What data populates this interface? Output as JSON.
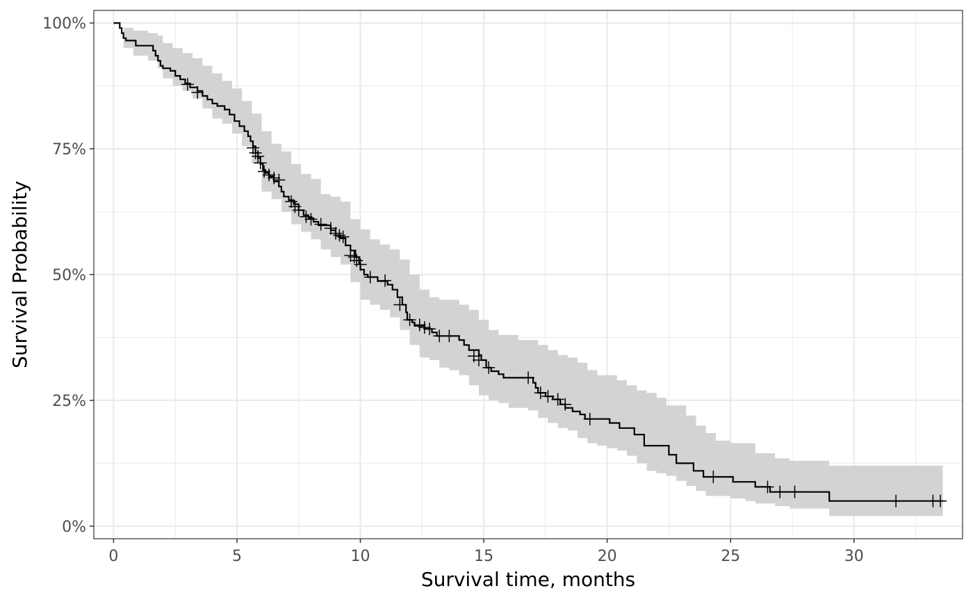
{
  "chart_data": {
    "type": "line",
    "title": "",
    "xlabel": "Survival time, months",
    "ylabel": "Survival Probability",
    "xlim": [
      -0.8,
      34.4
    ],
    "ylim": [
      -0.025,
      1.025
    ],
    "x_ticks": [
      0,
      5,
      10,
      15,
      20,
      25,
      30
    ],
    "x_tick_labels": [
      "0",
      "5",
      "10",
      "15",
      "20",
      "25",
      "30"
    ],
    "y_ticks": [
      0,
      0.25,
      0.5,
      0.75,
      1.0
    ],
    "y_tick_labels": [
      "0%",
      "25%",
      "50%",
      "75%",
      "100%"
    ],
    "grid": true,
    "legend": "none",
    "colors": {
      "curve": "#000000",
      "ci_band": "#d3d3d3",
      "grid": "#ebebeb",
      "panel_border": "#333333"
    },
    "series": [
      {
        "step": true,
        "points": [
          [
            0,
            1.0
          ],
          [
            0.25,
            0.99
          ],
          [
            0.33,
            0.98
          ],
          [
            0.4,
            0.97
          ],
          [
            0.5,
            0.965
          ],
          [
            0.9,
            0.955
          ],
          [
            1.6,
            0.945
          ],
          [
            1.7,
            0.935
          ],
          [
            1.8,
            0.925
          ],
          [
            1.9,
            0.915
          ],
          [
            2.0,
            0.91
          ],
          [
            2.3,
            0.905
          ],
          [
            2.5,
            0.895
          ],
          [
            2.7,
            0.888
          ],
          [
            2.9,
            0.88
          ],
          [
            3.1,
            0.872
          ],
          [
            3.4,
            0.865
          ],
          [
            3.6,
            0.855
          ],
          [
            3.8,
            0.848
          ],
          [
            4.0,
            0.84
          ],
          [
            4.2,
            0.835
          ],
          [
            4.5,
            0.828
          ],
          [
            4.7,
            0.818
          ],
          [
            4.9,
            0.805
          ],
          [
            5.1,
            0.795
          ],
          [
            5.3,
            0.785
          ],
          [
            5.45,
            0.775
          ],
          [
            5.55,
            0.765
          ],
          [
            5.65,
            0.755
          ],
          [
            5.75,
            0.742
          ],
          [
            5.85,
            0.732
          ],
          [
            5.95,
            0.72
          ],
          [
            6.05,
            0.708
          ],
          [
            6.15,
            0.702
          ],
          [
            6.3,
            0.695
          ],
          [
            6.5,
            0.685
          ],
          [
            6.7,
            0.675
          ],
          [
            6.8,
            0.665
          ],
          [
            6.9,
            0.655
          ],
          [
            7.1,
            0.648
          ],
          [
            7.3,
            0.64
          ],
          [
            7.5,
            0.628
          ],
          [
            7.7,
            0.618
          ],
          [
            7.9,
            0.612
          ],
          [
            8.1,
            0.605
          ],
          [
            8.3,
            0.598
          ],
          [
            8.6,
            0.598
          ],
          [
            8.8,
            0.588
          ],
          [
            9.0,
            0.578
          ],
          [
            9.2,
            0.572
          ],
          [
            9.4,
            0.558
          ],
          [
            9.6,
            0.548
          ],
          [
            9.8,
            0.535
          ],
          [
            9.95,
            0.522
          ],
          [
            10.0,
            0.51
          ],
          [
            10.15,
            0.5
          ],
          [
            10.3,
            0.495
          ],
          [
            10.7,
            0.487
          ],
          [
            11.1,
            0.48
          ],
          [
            11.3,
            0.47
          ],
          [
            11.5,
            0.455
          ],
          [
            11.7,
            0.44
          ],
          [
            11.85,
            0.425
          ],
          [
            11.9,
            0.41
          ],
          [
            12.1,
            0.405
          ],
          [
            12.2,
            0.398
          ],
          [
            12.6,
            0.392
          ],
          [
            12.9,
            0.385
          ],
          [
            13.1,
            0.378
          ],
          [
            14.0,
            0.37
          ],
          [
            14.2,
            0.36
          ],
          [
            14.4,
            0.35
          ],
          [
            14.8,
            0.34
          ],
          [
            14.9,
            0.33
          ],
          [
            15.1,
            0.315
          ],
          [
            15.3,
            0.308
          ],
          [
            15.6,
            0.302
          ],
          [
            15.8,
            0.295
          ],
          [
            17.0,
            0.285
          ],
          [
            17.1,
            0.275
          ],
          [
            17.2,
            0.265
          ],
          [
            17.5,
            0.258
          ],
          [
            17.8,
            0.252
          ],
          [
            18.1,
            0.242
          ],
          [
            18.3,
            0.235
          ],
          [
            18.6,
            0.228
          ],
          [
            18.9,
            0.222
          ],
          [
            19.1,
            0.213
          ],
          [
            20.1,
            0.205
          ],
          [
            20.5,
            0.195
          ],
          [
            21.1,
            0.182
          ],
          [
            21.5,
            0.16
          ],
          [
            22.5,
            0.142
          ],
          [
            22.8,
            0.125
          ],
          [
            23.5,
            0.11
          ],
          [
            23.9,
            0.098
          ],
          [
            25.1,
            0.088
          ],
          [
            26.0,
            0.078
          ],
          [
            26.6,
            0.068
          ],
          [
            27.3,
            0.068
          ],
          [
            29.0,
            0.05
          ],
          [
            33.6,
            0.05
          ]
        ],
        "ci_band": [
          [
            0,
            1.0,
            1.0
          ],
          [
            0.4,
            0.95,
            0.99
          ],
          [
            0.8,
            0.935,
            0.985
          ],
          [
            1.4,
            0.925,
            0.98
          ],
          [
            1.8,
            0.91,
            0.975
          ],
          [
            2.0,
            0.89,
            0.96
          ],
          [
            2.4,
            0.875,
            0.95
          ],
          [
            2.8,
            0.865,
            0.94
          ],
          [
            3.2,
            0.85,
            0.93
          ],
          [
            3.6,
            0.83,
            0.915
          ],
          [
            4.0,
            0.81,
            0.9
          ],
          [
            4.4,
            0.8,
            0.885
          ],
          [
            4.8,
            0.78,
            0.87
          ],
          [
            5.2,
            0.755,
            0.845
          ],
          [
            5.6,
            0.72,
            0.82
          ],
          [
            6.0,
            0.665,
            0.785
          ],
          [
            6.4,
            0.65,
            0.76
          ],
          [
            6.8,
            0.625,
            0.745
          ],
          [
            7.2,
            0.6,
            0.72
          ],
          [
            7.6,
            0.585,
            0.7
          ],
          [
            8.0,
            0.57,
            0.69
          ],
          [
            8.4,
            0.55,
            0.66
          ],
          [
            8.8,
            0.535,
            0.655
          ],
          [
            9.2,
            0.52,
            0.645
          ],
          [
            9.6,
            0.485,
            0.61
          ],
          [
            10.0,
            0.45,
            0.59
          ],
          [
            10.4,
            0.44,
            0.57
          ],
          [
            10.8,
            0.43,
            0.56
          ],
          [
            11.2,
            0.415,
            0.55
          ],
          [
            11.6,
            0.39,
            0.53
          ],
          [
            12.0,
            0.36,
            0.5
          ],
          [
            12.4,
            0.335,
            0.47
          ],
          [
            12.8,
            0.33,
            0.455
          ],
          [
            13.2,
            0.315,
            0.45
          ],
          [
            13.6,
            0.31,
            0.45
          ],
          [
            14.0,
            0.3,
            0.44
          ],
          [
            14.4,
            0.28,
            0.43
          ],
          [
            14.8,
            0.26,
            0.41
          ],
          [
            15.2,
            0.25,
            0.39
          ],
          [
            15.6,
            0.245,
            0.38
          ],
          [
            16.0,
            0.235,
            0.38
          ],
          [
            16.4,
            0.235,
            0.37
          ],
          [
            16.8,
            0.23,
            0.37
          ],
          [
            17.2,
            0.215,
            0.36
          ],
          [
            17.6,
            0.205,
            0.35
          ],
          [
            18.0,
            0.195,
            0.34
          ],
          [
            18.4,
            0.19,
            0.335
          ],
          [
            18.8,
            0.175,
            0.325
          ],
          [
            19.2,
            0.165,
            0.31
          ],
          [
            19.6,
            0.16,
            0.3
          ],
          [
            20.0,
            0.155,
            0.3
          ],
          [
            20.4,
            0.15,
            0.29
          ],
          [
            20.8,
            0.14,
            0.28
          ],
          [
            21.2,
            0.125,
            0.27
          ],
          [
            21.6,
            0.11,
            0.265
          ],
          [
            22.0,
            0.105,
            0.255
          ],
          [
            22.4,
            0.1,
            0.24
          ],
          [
            22.8,
            0.09,
            0.24
          ],
          [
            23.2,
            0.08,
            0.22
          ],
          [
            23.6,
            0.07,
            0.2
          ],
          [
            24.0,
            0.06,
            0.185
          ],
          [
            24.4,
            0.06,
            0.17
          ],
          [
            25.0,
            0.055,
            0.165
          ],
          [
            25.6,
            0.05,
            0.165
          ],
          [
            26.0,
            0.045,
            0.145
          ],
          [
            26.8,
            0.04,
            0.135
          ],
          [
            27.4,
            0.035,
            0.13
          ],
          [
            28.2,
            0.035,
            0.13
          ],
          [
            29.0,
            0.02,
            0.12
          ],
          [
            33.6,
            0.02,
            0.12
          ]
        ],
        "censor_marks": [
          [
            3.0,
            0.878
          ],
          [
            3.4,
            0.862
          ],
          [
            5.65,
            0.752
          ],
          [
            5.75,
            0.742
          ],
          [
            5.85,
            0.735
          ],
          [
            5.95,
            0.722
          ],
          [
            6.1,
            0.705
          ],
          [
            6.3,
            0.698
          ],
          [
            6.5,
            0.692
          ],
          [
            6.7,
            0.688
          ],
          [
            7.2,
            0.645
          ],
          [
            7.35,
            0.635
          ],
          [
            7.5,
            0.628
          ],
          [
            7.8,
            0.615
          ],
          [
            8.0,
            0.61
          ],
          [
            8.4,
            0.6
          ],
          [
            8.8,
            0.592
          ],
          [
            9.0,
            0.582
          ],
          [
            9.15,
            0.578
          ],
          [
            9.3,
            0.575
          ],
          [
            9.6,
            0.538
          ],
          [
            9.75,
            0.535
          ],
          [
            9.85,
            0.528
          ],
          [
            10.0,
            0.52
          ],
          [
            10.4,
            0.495
          ],
          [
            11.0,
            0.488
          ],
          [
            11.6,
            0.44
          ],
          [
            12.0,
            0.41
          ],
          [
            12.4,
            0.4
          ],
          [
            12.6,
            0.395
          ],
          [
            12.8,
            0.392
          ],
          [
            13.2,
            0.378
          ],
          [
            13.6,
            0.378
          ],
          [
            14.6,
            0.338
          ],
          [
            14.8,
            0.33
          ],
          [
            15.2,
            0.315
          ],
          [
            16.8,
            0.295
          ],
          [
            17.3,
            0.265
          ],
          [
            17.6,
            0.258
          ],
          [
            18.0,
            0.252
          ],
          [
            18.3,
            0.242
          ],
          [
            19.3,
            0.213
          ],
          [
            24.3,
            0.098
          ],
          [
            26.5,
            0.078
          ],
          [
            27.0,
            0.068
          ],
          [
            27.6,
            0.068
          ],
          [
            31.7,
            0.05
          ],
          [
            33.2,
            0.05
          ],
          [
            33.5,
            0.05
          ]
        ]
      }
    ]
  }
}
